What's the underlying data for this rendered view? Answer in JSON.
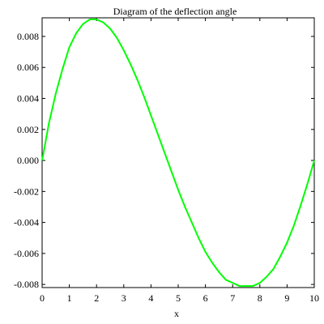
{
  "chart_data": {
    "type": "line",
    "title": "Diagram of the deflection angle",
    "xlabel": "x",
    "ylabel": "",
    "xlim": [
      0,
      10
    ],
    "ylim": [
      -0.0082,
      0.0092
    ],
    "grid": false,
    "legend": "none",
    "x_ticks": [
      0,
      1,
      2,
      3,
      4,
      5,
      6,
      7,
      8,
      9,
      10
    ],
    "x_tick_labels": [
      "0",
      "1",
      "2",
      "3",
      "4",
      "5",
      "6",
      "7",
      "8",
      "9",
      "10"
    ],
    "y_ticks": [
      -0.008,
      -0.006,
      -0.004,
      -0.002,
      0,
      0.002,
      0.004,
      0.006,
      0.008
    ],
    "y_tick_labels": [
      "-0.008",
      "-0.006",
      "-0.004",
      "-0.002",
      "0.000",
      "0.002",
      "0.004",
      "0.006",
      "0.008"
    ],
    "series": [
      {
        "color": "#00ff00",
        "x": [
          0,
          0.25,
          0.5,
          0.75,
          1.0,
          1.25,
          1.5,
          1.75,
          2.0,
          2.25,
          2.5,
          2.75,
          3.0,
          3.25,
          3.5,
          3.75,
          4.0,
          4.25,
          4.5,
          4.75,
          5.0,
          5.25,
          5.5,
          5.75,
          6.0,
          6.25,
          6.5,
          6.75,
          7.0,
          7.25,
          7.5,
          7.75,
          8.0,
          8.25,
          8.5,
          8.75,
          9.0,
          9.25,
          9.5,
          9.75,
          10.0
        ],
        "y": [
          0.0,
          0.0024,
          0.0043,
          0.0059,
          0.0073,
          0.0082,
          0.0088,
          0.0091,
          0.0091,
          0.0089,
          0.0085,
          0.0079,
          0.0071,
          0.0062,
          0.0052,
          0.0041,
          0.0029,
          0.0017,
          0.0005,
          -0.0007,
          -0.0019,
          -0.003,
          -0.004,
          -0.005,
          -0.0059,
          -0.0066,
          -0.0072,
          -0.0077,
          -0.0079,
          -0.0081,
          -0.0081,
          -0.0081,
          -0.0079,
          -0.0075,
          -0.007,
          -0.0062,
          -0.0053,
          -0.0042,
          -0.0029,
          -0.0015,
          0.0
        ]
      }
    ]
  }
}
